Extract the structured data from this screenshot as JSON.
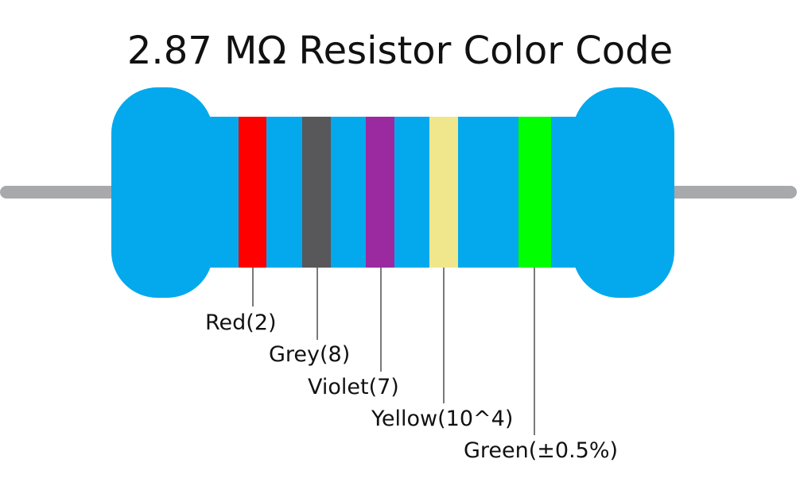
{
  "title": "2.87 MΩ Resistor Color Code",
  "bands": [
    "Red(2)",
    "Grey(8)",
    "Violet(7)",
    "Yellow(10^4)",
    "Green(±0.5%)"
  ]
}
